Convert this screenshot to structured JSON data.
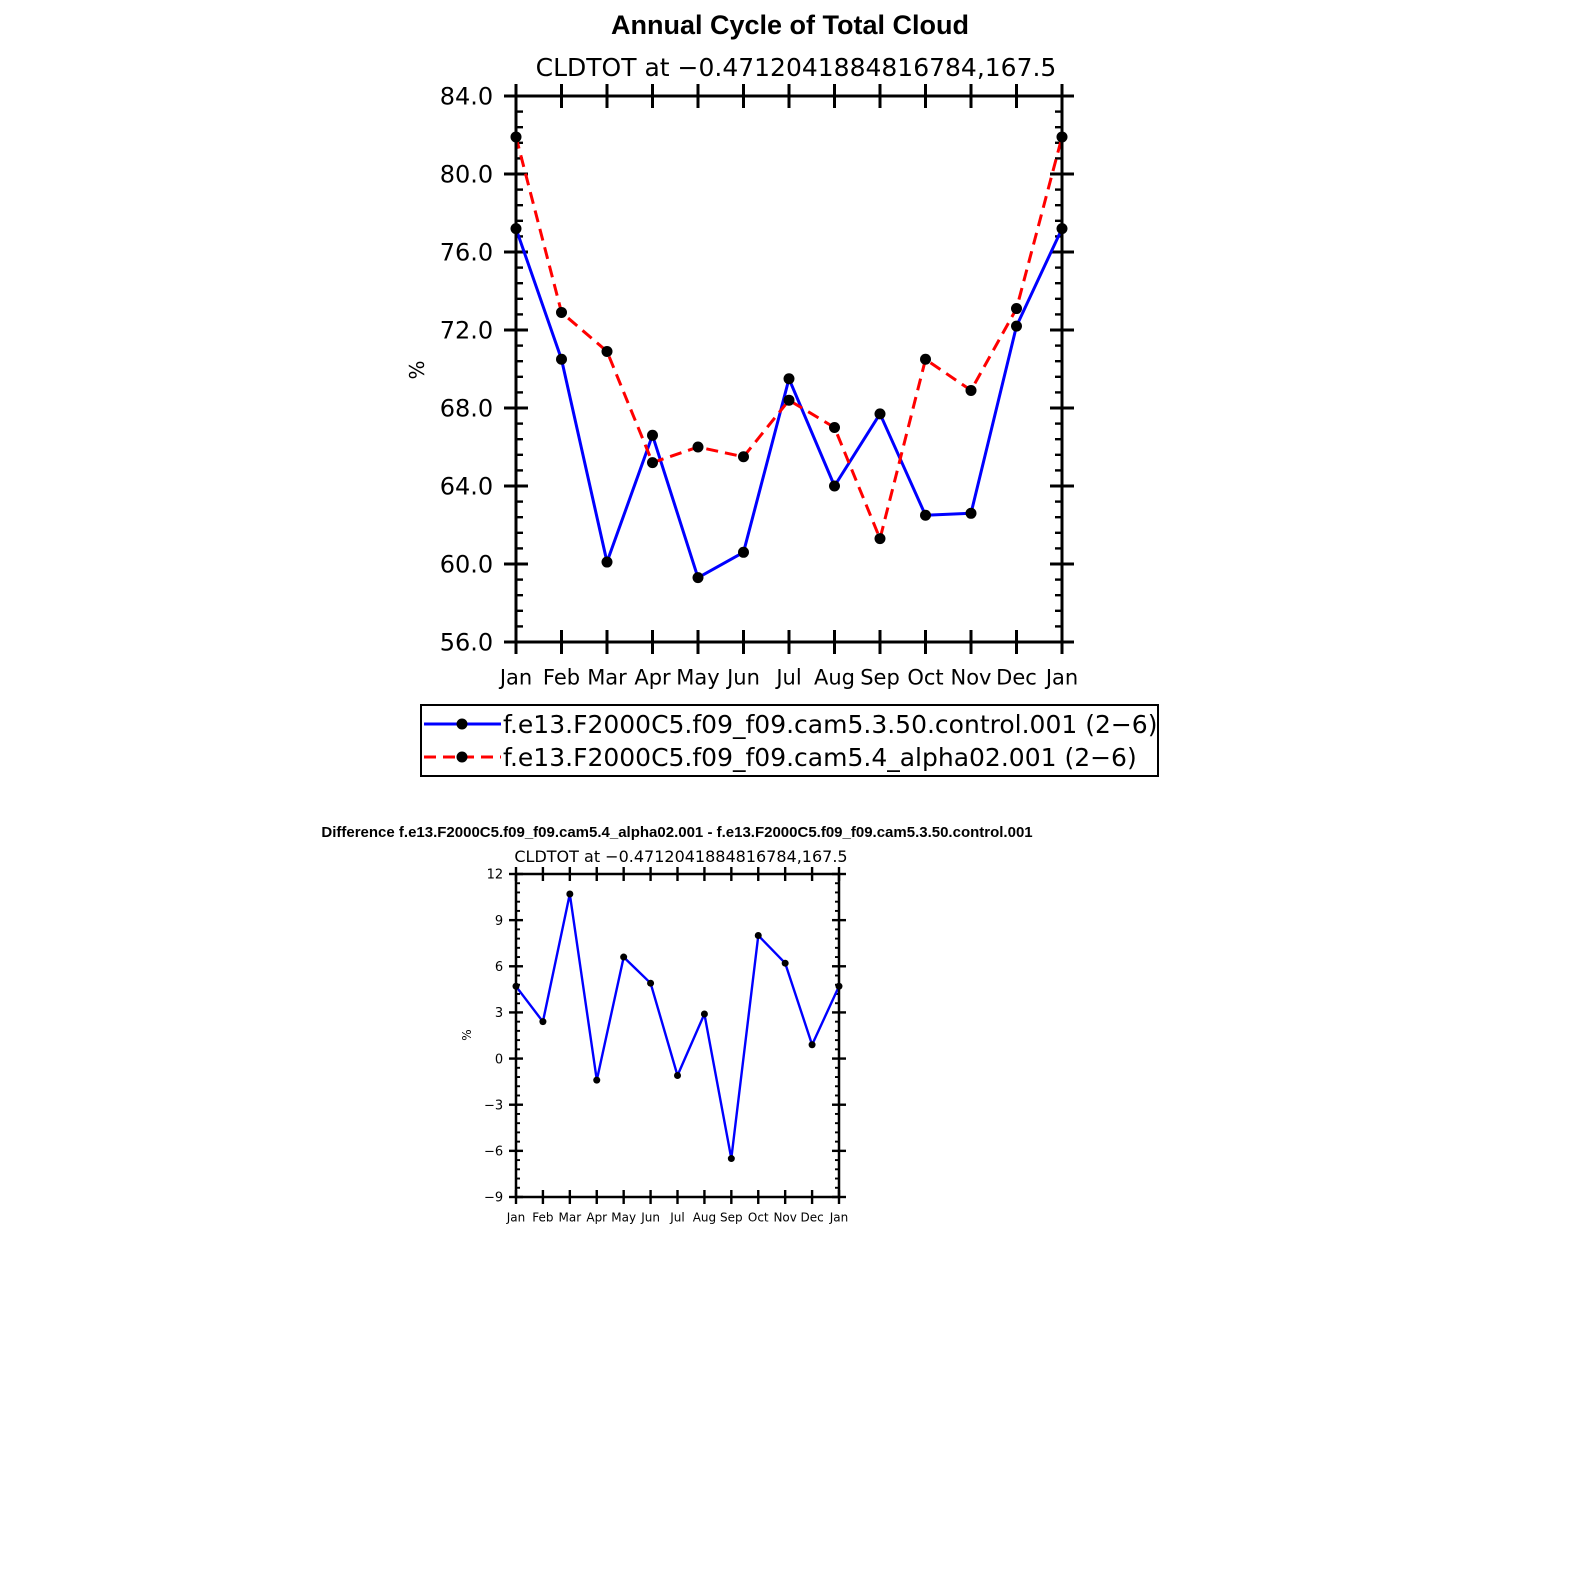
{
  "chart_data": [
    {
      "type": "line",
      "title": "Annual Cycle of Total Cloud",
      "subtitle": "CLDTOT at −0.4712041884816784,167.5",
      "xlabel": "",
      "ylabel": "%",
      "categories": [
        "Jan",
        "Feb",
        "Mar",
        "Apr",
        "May",
        "Jun",
        "Jul",
        "Aug",
        "Sep",
        "Oct",
        "Nov",
        "Dec",
        "Jan"
      ],
      "yticks": [
        "56.0",
        "60.0",
        "64.0",
        "68.0",
        "72.0",
        "76.0",
        "80.0",
        "84.0"
      ],
      "ylim": [
        56,
        84
      ],
      "grid": false,
      "legend_position": "bottom",
      "series": [
        {
          "name": "f.e13.F2000C5.f09_f09.cam5.3.50.control.001 (2−6)",
          "color": "#0000ff",
          "dash": "solid",
          "values": [
            77.2,
            70.5,
            60.1,
            66.6,
            59.3,
            60.6,
            69.5,
            64.0,
            67.7,
            62.5,
            62.6,
            72.2,
            77.2
          ]
        },
        {
          "name": "f.e13.F2000C5.f09_f09.cam5.4_alpha02.001 (2−6)",
          "color": "#ff0000",
          "dash": "dashed",
          "values": [
            81.9,
            72.9,
            70.9,
            65.2,
            66.0,
            65.5,
            68.4,
            67.0,
            61.3,
            70.5,
            68.9,
            73.1,
            81.9
          ]
        }
      ]
    },
    {
      "type": "line",
      "title": "Difference f.e13.F2000C5.f09_f09.cam5.4_alpha02.001 - f.e13.F2000C5.f09_f09.cam5.3.50.control.001",
      "subtitle": "CLDTOT at −0.4712041884816784,167.5",
      "xlabel": "",
      "ylabel": "%",
      "categories": [
        "Jan",
        "Feb",
        "Mar",
        "Apr",
        "May",
        "Jun",
        "Jul",
        "Aug",
        "Sep",
        "Oct",
        "Nov",
        "Dec",
        "Jan"
      ],
      "yticks": [
        "−9",
        "−6",
        "−3",
        "0",
        "3",
        "6",
        "9",
        "12"
      ],
      "ylim": [
        -9,
        12
      ],
      "grid": false,
      "series": [
        {
          "color": "#0000ff",
          "dash": "solid",
          "values": [
            4.7,
            2.4,
            10.7,
            -1.4,
            6.6,
            4.9,
            -1.1,
            2.9,
            -6.5,
            8.0,
            6.2,
            0.9,
            4.7
          ]
        }
      ]
    }
  ]
}
